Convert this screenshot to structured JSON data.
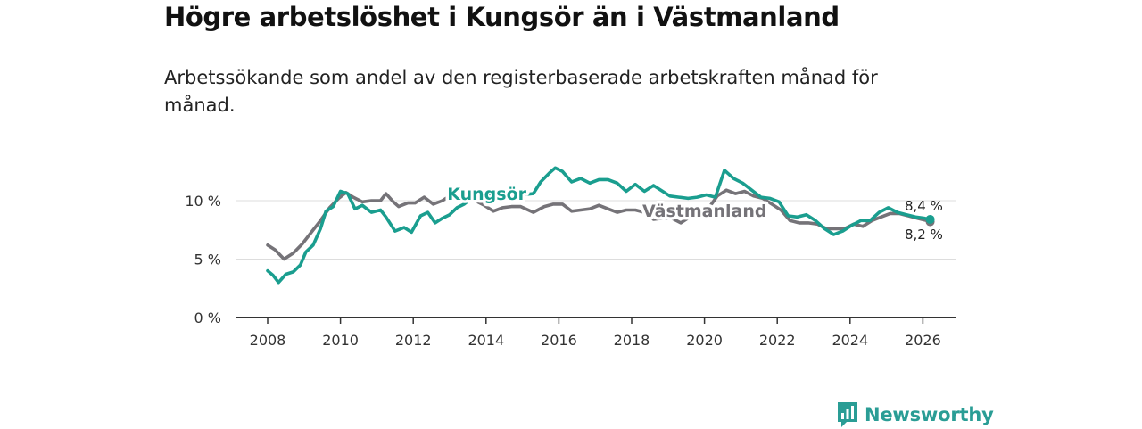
{
  "title": "Högre arbetslöshet i Kungsör än i Västmanland",
  "subtitle": "Arbetssökande som andel av den registerbaserade arbetskraften månad för månad.",
  "brand": "Newsworthy",
  "colors": {
    "kungsor": "#1a9e8f",
    "vastmanland": "#757378",
    "axis": "#333333",
    "grid": "#dddddd"
  },
  "chart_data": {
    "type": "line",
    "title": "Högre arbetslöshet i Kungsör än i Västmanland",
    "xlabel": "",
    "ylabel": "",
    "xlim": [
      2007.5,
      2027.0
    ],
    "ylim": [
      0,
      10
    ],
    "y_ticks": [
      0,
      5,
      10
    ],
    "y_tick_labels": [
      "0 %",
      "5 %",
      "10 %"
    ],
    "x_ticks": [
      2008,
      2010,
      2012,
      2014,
      2016,
      2018,
      2020,
      2022,
      2024,
      2026
    ],
    "x_tick_labels": [
      "2008",
      "2010",
      "2012",
      "2014",
      "2016",
      "2018",
      "2020",
      "2022",
      "2024",
      "2026"
    ],
    "grid": true,
    "series": [
      {
        "name": "Västmanland",
        "label": "Västmanland",
        "color": "#757378",
        "end_label": "8,2 %",
        "points": [
          [
            2008.0,
            6.2
          ],
          [
            2008.2,
            5.8
          ],
          [
            2008.45,
            5.0
          ],
          [
            2008.7,
            5.5
          ],
          [
            2008.95,
            6.3
          ],
          [
            2009.2,
            7.3
          ],
          [
            2009.45,
            8.3
          ],
          [
            2009.7,
            9.4
          ],
          [
            2009.95,
            10.2
          ],
          [
            2010.15,
            10.7
          ],
          [
            2010.35,
            10.3
          ],
          [
            2010.6,
            9.9
          ],
          [
            2010.85,
            10.0
          ],
          [
            2011.1,
            10.0
          ],
          [
            2011.25,
            10.6
          ],
          [
            2011.45,
            9.9
          ],
          [
            2011.6,
            9.5
          ],
          [
            2011.85,
            9.8
          ],
          [
            2012.05,
            9.8
          ],
          [
            2012.3,
            10.3
          ],
          [
            2012.55,
            9.7
          ],
          [
            2012.8,
            10.0
          ],
          [
            2013.0,
            10.4
          ],
          [
            2013.2,
            10.7
          ],
          [
            2013.45,
            10.4
          ],
          [
            2013.7,
            10.0
          ],
          [
            2013.95,
            9.6
          ],
          [
            2014.2,
            9.1
          ],
          [
            2014.45,
            9.4
          ],
          [
            2014.7,
            9.5
          ],
          [
            2014.95,
            9.5
          ],
          [
            2015.3,
            9.0
          ],
          [
            2015.6,
            9.5
          ],
          [
            2015.85,
            9.7
          ],
          [
            2016.1,
            9.7
          ],
          [
            2016.35,
            9.1
          ],
          [
            2016.6,
            9.2
          ],
          [
            2016.85,
            9.3
          ],
          [
            2017.1,
            9.6
          ],
          [
            2017.35,
            9.3
          ],
          [
            2017.6,
            9.0
          ],
          [
            2017.85,
            9.2
          ],
          [
            2018.1,
            9.2
          ],
          [
            2018.35,
            9.0
          ],
          [
            2018.6,
            8.4
          ],
          [
            2018.85,
            8.5
          ],
          [
            2019.1,
            8.5
          ],
          [
            2019.35,
            8.1
          ],
          [
            2019.6,
            8.6
          ],
          [
            2019.85,
            8.8
          ],
          [
            2020.1,
            9.3
          ],
          [
            2020.35,
            10.4
          ],
          [
            2020.6,
            10.9
          ],
          [
            2020.85,
            10.6
          ],
          [
            2021.1,
            10.8
          ],
          [
            2021.35,
            10.4
          ],
          [
            2021.6,
            10.2
          ],
          [
            2021.85,
            9.7
          ],
          [
            2022.1,
            9.2
          ],
          [
            2022.35,
            8.3
          ],
          [
            2022.6,
            8.1
          ],
          [
            2022.85,
            8.1
          ],
          [
            2023.1,
            8.0
          ],
          [
            2023.35,
            7.6
          ],
          [
            2023.6,
            7.6
          ],
          [
            2023.85,
            7.6
          ],
          [
            2024.1,
            8.0
          ],
          [
            2024.35,
            7.8
          ],
          [
            2024.6,
            8.3
          ],
          [
            2024.85,
            8.6
          ],
          [
            2025.1,
            8.9
          ],
          [
            2025.35,
            8.9
          ],
          [
            2025.6,
            8.7
          ],
          [
            2025.85,
            8.5
          ],
          [
            2026.1,
            8.3
          ],
          [
            2026.2,
            8.2
          ]
        ]
      },
      {
        "name": "Kungsör",
        "label": "Kungsör",
        "color": "#1a9e8f",
        "end_label": "8,4 %",
        "points": [
          [
            2008.0,
            4.0
          ],
          [
            2008.15,
            3.6
          ],
          [
            2008.3,
            3.0
          ],
          [
            2008.5,
            3.7
          ],
          [
            2008.7,
            3.9
          ],
          [
            2008.9,
            4.5
          ],
          [
            2009.05,
            5.6
          ],
          [
            2009.25,
            6.2
          ],
          [
            2009.45,
            7.6
          ],
          [
            2009.6,
            9.1
          ],
          [
            2009.8,
            9.5
          ],
          [
            2010.0,
            10.8
          ],
          [
            2010.2,
            10.6
          ],
          [
            2010.4,
            9.3
          ],
          [
            2010.6,
            9.6
          ],
          [
            2010.85,
            9.0
          ],
          [
            2011.1,
            9.2
          ],
          [
            2011.25,
            8.6
          ],
          [
            2011.5,
            7.4
          ],
          [
            2011.75,
            7.7
          ],
          [
            2011.95,
            7.3
          ],
          [
            2012.2,
            8.7
          ],
          [
            2012.4,
            9.0
          ],
          [
            2012.6,
            8.1
          ],
          [
            2012.8,
            8.5
          ],
          [
            2013.0,
            8.8
          ],
          [
            2013.2,
            9.4
          ],
          [
            2013.4,
            9.7
          ],
          [
            2013.6,
            10.2
          ],
          [
            2013.8,
            10.4
          ],
          [
            2014.0,
            10.5
          ],
          [
            2014.25,
            10.2
          ],
          [
            2014.5,
            10.5
          ],
          [
            2014.75,
            10.2
          ],
          [
            2015.0,
            10.5
          ],
          [
            2015.3,
            10.6
          ],
          [
            2015.5,
            11.6
          ],
          [
            2015.75,
            12.4
          ],
          [
            2015.9,
            12.8
          ],
          [
            2016.1,
            12.5
          ],
          [
            2016.35,
            11.6
          ],
          [
            2016.6,
            11.9
          ],
          [
            2016.85,
            11.5
          ],
          [
            2017.1,
            11.8
          ],
          [
            2017.35,
            11.8
          ],
          [
            2017.6,
            11.5
          ],
          [
            2017.85,
            10.8
          ],
          [
            2018.1,
            11.4
          ],
          [
            2018.35,
            10.8
          ],
          [
            2018.6,
            11.3
          ],
          [
            2018.85,
            10.8
          ],
          [
            2019.05,
            10.4
          ],
          [
            2019.3,
            10.3
          ],
          [
            2019.55,
            10.2
          ],
          [
            2019.8,
            10.3
          ],
          [
            2020.05,
            10.5
          ],
          [
            2020.3,
            10.3
          ],
          [
            2020.55,
            12.6
          ],
          [
            2020.8,
            11.9
          ],
          [
            2021.05,
            11.5
          ],
          [
            2021.3,
            10.9
          ],
          [
            2021.55,
            10.3
          ],
          [
            2021.8,
            10.2
          ],
          [
            2022.05,
            9.9
          ],
          [
            2022.3,
            8.7
          ],
          [
            2022.55,
            8.6
          ],
          [
            2022.8,
            8.8
          ],
          [
            2023.05,
            8.3
          ],
          [
            2023.3,
            7.6
          ],
          [
            2023.55,
            7.1
          ],
          [
            2023.8,
            7.4
          ],
          [
            2024.05,
            7.9
          ],
          [
            2024.3,
            8.3
          ],
          [
            2024.55,
            8.3
          ],
          [
            2024.8,
            9.0
          ],
          [
            2025.05,
            9.4
          ],
          [
            2025.3,
            9.0
          ],
          [
            2025.55,
            8.8
          ],
          [
            2025.8,
            8.6
          ],
          [
            2026.05,
            8.5
          ],
          [
            2026.2,
            8.4
          ]
        ]
      }
    ]
  }
}
